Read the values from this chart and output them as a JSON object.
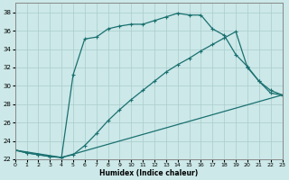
{
  "bg_color": "#cce8e8",
  "grid_color": "#aacccc",
  "line_color": "#1a7070",
  "xlabel": "Humidex (Indice chaleur)",
  "ylim": [
    22,
    39
  ],
  "xlim": [
    0,
    23
  ],
  "yticks": [
    22,
    24,
    26,
    28,
    30,
    32,
    34,
    36,
    38
  ],
  "xticks": [
    0,
    1,
    2,
    3,
    4,
    5,
    6,
    7,
    8,
    9,
    10,
    11,
    12,
    13,
    14,
    15,
    16,
    17,
    18,
    19,
    20,
    21,
    22,
    23
  ],
  "line1_x": [
    0,
    1,
    2,
    3,
    4,
    5,
    6,
    7,
    8,
    9,
    10,
    11,
    12,
    13,
    14,
    15,
    16,
    17,
    18,
    19,
    20,
    21,
    22,
    23
  ],
  "line1_y": [
    23.0,
    22.7,
    22.5,
    22.3,
    22.2,
    31.2,
    35.1,
    35.3,
    36.2,
    36.5,
    36.7,
    36.7,
    37.1,
    37.5,
    37.9,
    37.7,
    37.7,
    36.2,
    35.5,
    33.4,
    32.1,
    30.5,
    29.2,
    29.0
  ],
  "line2_x": [
    0,
    1,
    2,
    3,
    4,
    5,
    6,
    7,
    8,
    9,
    10,
    11,
    12,
    13,
    14,
    15,
    16,
    17,
    18,
    19,
    20,
    21,
    22,
    23
  ],
  "line2_y": [
    23.0,
    22.7,
    22.5,
    22.3,
    22.2,
    22.5,
    23.5,
    24.8,
    26.2,
    27.4,
    28.5,
    29.5,
    30.5,
    31.5,
    32.3,
    33.0,
    33.8,
    34.5,
    35.2,
    35.9,
    32.0,
    30.5,
    29.5,
    29.0
  ],
  "line3_x": [
    0,
    4,
    23
  ],
  "line3_y": [
    23.0,
    22.2,
    29.0
  ],
  "marker": "+",
  "markersize": 3,
  "linewidth": 0.9
}
